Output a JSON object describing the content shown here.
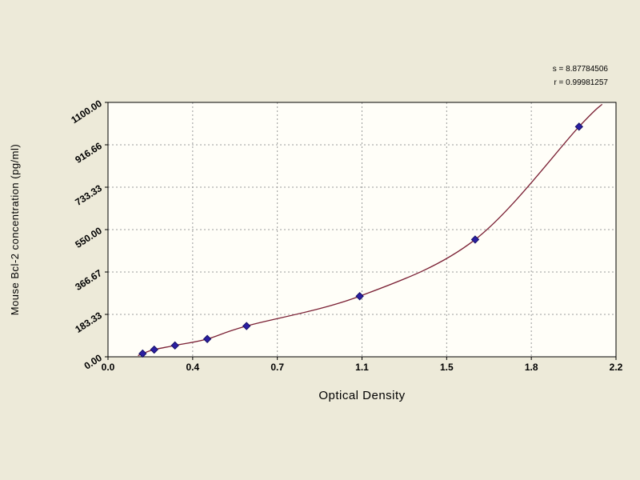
{
  "window": {
    "background": "#edead9"
  },
  "chart_data": {
    "type": "scatter",
    "title": "",
    "xlabel": "Optical Density",
    "ylabel": "Mouse Bcl-2 concentration (pg/ml)",
    "xlim": [
      0,
      2.2
    ],
    "ylim": [
      0,
      1100
    ],
    "grid": "dashed",
    "legend": "none",
    "x_tick_values": [
      0,
      0.3667,
      0.7333,
      1.1,
      1.4667,
      1.8333,
      2.2
    ],
    "x_tick_labels": [
      "0.0",
      "0.4",
      "0.7",
      "1.1",
      "1.5",
      "1.8",
      "2.2"
    ],
    "y_tick_values": [
      0,
      183.33,
      366.67,
      550.0,
      733.33,
      916.66,
      1100.0
    ],
    "y_tick_labels": [
      "0.00",
      "183.33",
      "366.67",
      "550.00",
      "733.33",
      "916.66",
      "1100.00"
    ],
    "points": [
      {
        "x": 0.15,
        "y": 14
      },
      {
        "x": 0.2,
        "y": 31
      },
      {
        "x": 0.29,
        "y": 49
      },
      {
        "x": 0.43,
        "y": 77
      },
      {
        "x": 0.6,
        "y": 133
      },
      {
        "x": 1.09,
        "y": 262
      },
      {
        "x": 1.59,
        "y": 507
      },
      {
        "x": 2.04,
        "y": 995
      }
    ],
    "curve_extension": {
      "start": [
        0.13,
        5
      ],
      "end": [
        2.14,
        1092
      ]
    },
    "stats": {
      "s_line": "s = 8.87784506",
      "r_line": "r = 0.99981257"
    },
    "colors": {
      "plot_background": "#fffef8",
      "grid": "#9a9a9a",
      "axis": "#000000",
      "curve": "#7a1f33",
      "marker_fill": "#2b1fa2",
      "marker_edge": "#151066",
      "text": "#000000"
    }
  }
}
